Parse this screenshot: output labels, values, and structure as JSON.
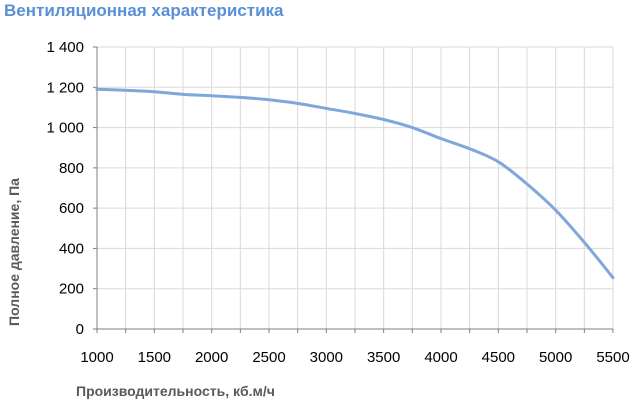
{
  "chart_data": {
    "type": "line",
    "title": "Вентиляционная характеристика",
    "xlabel": "Производительность, кб.м/ч",
    "ylabel": "Полное давление, Па",
    "xlim": [
      1000,
      5500
    ],
    "ylim": [
      0,
      1400
    ],
    "x_ticks": [
      1000,
      1500,
      2000,
      2500,
      3000,
      3500,
      4000,
      4500,
      5000,
      5500
    ],
    "x_tick_labels": [
      "1000",
      "1500",
      "2000",
      "2500",
      "3000",
      "3500",
      "4000",
      "4500",
      "5000",
      "5500"
    ],
    "y_ticks": [
      0,
      200,
      400,
      600,
      800,
      1000,
      1200,
      1400
    ],
    "y_tick_labels": [
      "0",
      "200",
      "400",
      "600",
      "800",
      "1 000",
      "1 200",
      "1 400"
    ],
    "grid": true,
    "legend": "none",
    "series": [
      {
        "color": "#7fa7dc",
        "x": [
          1000,
          1250,
          1500,
          1750,
          2000,
          2250,
          2500,
          2750,
          3000,
          3250,
          3500,
          3750,
          4000,
          4250,
          4500,
          4750,
          5000,
          5250,
          5500
        ],
        "y": [
          1190,
          1185,
          1178,
          1165,
          1158,
          1150,
          1138,
          1120,
          1095,
          1070,
          1040,
          1000,
          945,
          895,
          830,
          720,
          590,
          430,
          255
        ]
      }
    ]
  }
}
